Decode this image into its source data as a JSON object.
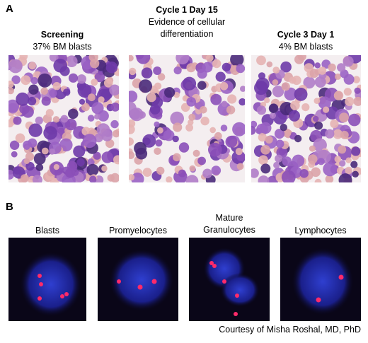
{
  "panel_a": {
    "label": "A",
    "images": [
      {
        "title": "Screening",
        "caption": "37% BM blasts"
      },
      {
        "title": "Cycle 1 Day 15",
        "caption": "Evidence of cellular differentiation"
      },
      {
        "title": "Cycle 3 Day 1",
        "caption": "4% BM blasts"
      }
    ]
  },
  "panel_b": {
    "label": "B",
    "images": [
      {
        "label": "Blasts"
      },
      {
        "label": "Promyelocytes"
      },
      {
        "label": "Mature Granulocytes"
      },
      {
        "label": "Lymphocytes"
      }
    ]
  },
  "credit": "Courtesy of Misha Roshal, MD, PhD"
}
